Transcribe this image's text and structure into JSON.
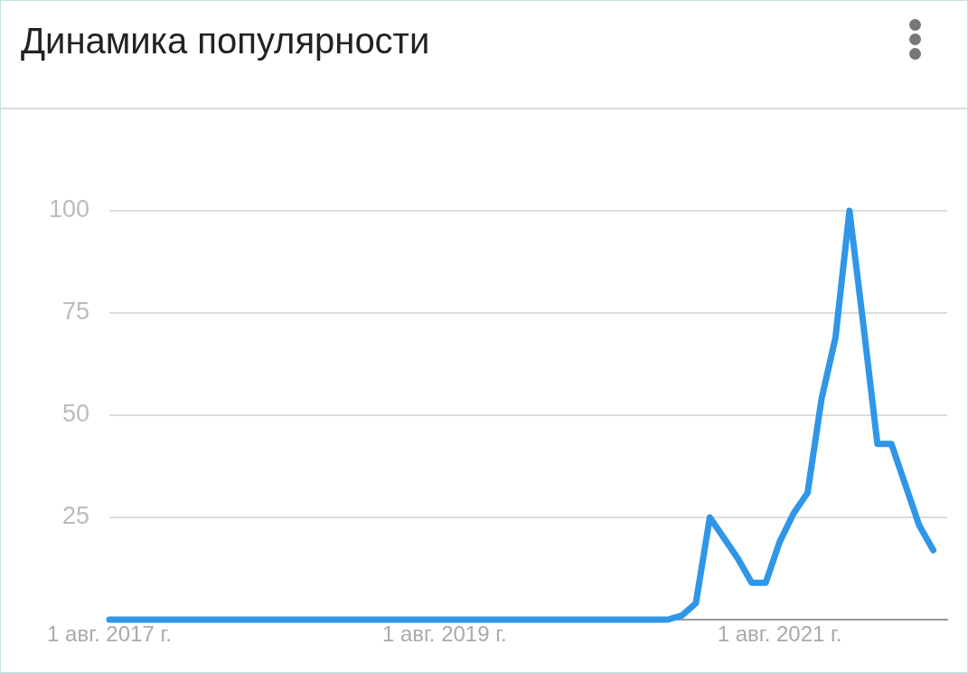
{
  "chart_data": {
    "type": "line",
    "title": "Динамика популярности",
    "x": [
      "2017-08",
      "2017-09",
      "2017-10",
      "2017-11",
      "2017-12",
      "2018-01",
      "2018-02",
      "2018-03",
      "2018-04",
      "2018-05",
      "2018-06",
      "2018-07",
      "2018-08",
      "2018-09",
      "2018-10",
      "2018-11",
      "2018-12",
      "2019-01",
      "2019-02",
      "2019-03",
      "2019-04",
      "2019-05",
      "2019-06",
      "2019-07",
      "2019-08",
      "2019-09",
      "2019-10",
      "2019-11",
      "2019-12",
      "2020-01",
      "2020-02",
      "2020-03",
      "2020-04",
      "2020-05",
      "2020-06",
      "2020-07",
      "2020-08",
      "2020-09",
      "2020-10",
      "2020-11",
      "2020-12",
      "2021-01",
      "2021-02",
      "2021-03",
      "2021-04",
      "2021-05",
      "2021-06",
      "2021-07",
      "2021-08",
      "2021-09",
      "2021-10",
      "2021-11",
      "2021-12",
      "2022-01",
      "2022-02",
      "2022-03",
      "2022-04",
      "2022-05",
      "2022-06",
      "2022-07"
    ],
    "series": [
      {
        "color": "#2f96e8",
        "values": [
          0,
          0,
          0,
          0,
          0,
          0,
          0,
          0,
          0,
          0,
          0,
          0,
          0,
          0,
          0,
          0,
          0,
          0,
          0,
          0,
          0,
          0,
          0,
          0,
          0,
          0,
          0,
          0,
          0,
          0,
          0,
          0,
          0,
          0,
          0,
          0,
          0,
          0,
          0,
          0,
          0,
          1,
          4,
          25,
          20,
          15,
          9,
          9,
          19,
          26,
          31,
          54,
          69,
          100,
          72,
          43,
          43,
          33,
          23,
          17
        ]
      }
    ],
    "xlim": [
      "2017-08",
      "2022-08"
    ],
    "xticks": [
      {
        "value": "2017-08",
        "label": "1 авг. 2017 г."
      },
      {
        "value": "2019-08",
        "label": "1 авг. 2019 г."
      },
      {
        "value": "2021-08",
        "label": "1 авг. 2021 г."
      }
    ],
    "ylim": [
      0,
      100
    ],
    "yticks": [
      25,
      50,
      75,
      100
    ],
    "grid": "y",
    "legend": false,
    "marker": "none",
    "line_style": "solid"
  }
}
